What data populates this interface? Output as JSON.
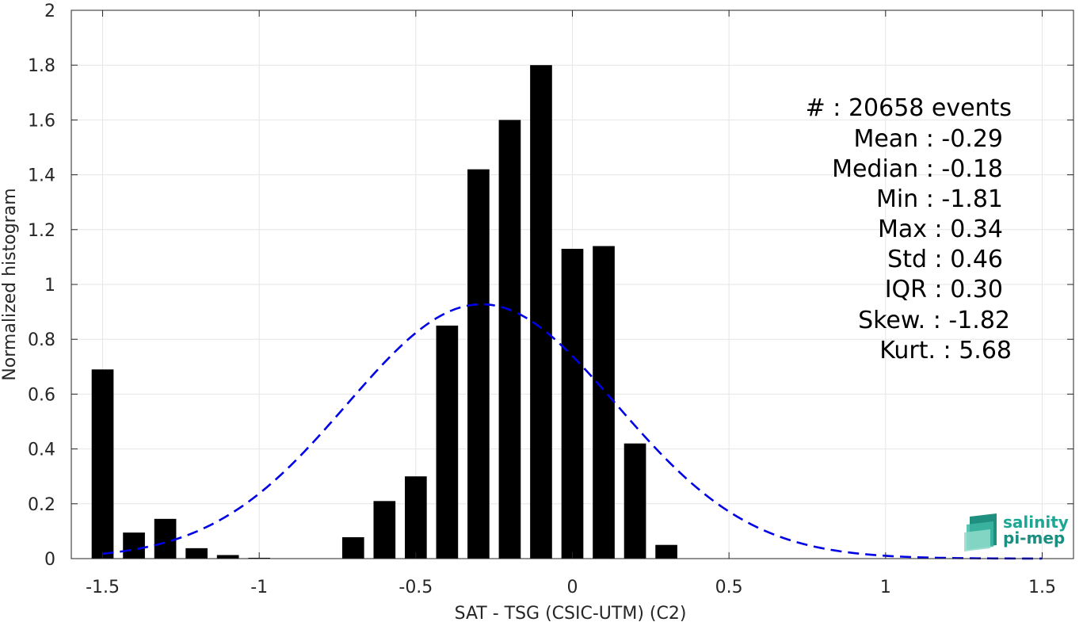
{
  "chart_data": {
    "type": "bar",
    "xlabel": "SAT - TSG (CSIC-UTM) (C2)",
    "ylabel": "Normalized histogram",
    "xlim": [
      -1.6,
      1.6
    ],
    "ylim": [
      0,
      2
    ],
    "x_ticks": [
      "-1.5",
      "-1",
      "-0.5",
      "0",
      "0.5",
      "1",
      "1.5"
    ],
    "x_tick_values": [
      -1.5,
      -1,
      -0.5,
      0,
      0.5,
      1,
      1.5
    ],
    "y_ticks": [
      "0",
      "0.2",
      "0.4",
      "0.6",
      "0.8",
      "1",
      "1.2",
      "1.4",
      "1.6",
      "1.8",
      "2"
    ],
    "y_tick_values": [
      0,
      0.2,
      0.4,
      0.6,
      0.8,
      1,
      1.2,
      1.4,
      1.6,
      1.8,
      2
    ],
    "grid": true,
    "bar_width": 0.07,
    "bar_color": "#000000",
    "bins": [
      {
        "x": -1.5,
        "y": 0.69
      },
      {
        "x": -1.4,
        "y": 0.095
      },
      {
        "x": -1.3,
        "y": 0.145
      },
      {
        "x": -1.2,
        "y": 0.038
      },
      {
        "x": -1.1,
        "y": 0.013
      },
      {
        "x": -1.0,
        "y": 0.003
      },
      {
        "x": -0.9,
        "y": 0.0
      },
      {
        "x": -0.8,
        "y": 0.0
      },
      {
        "x": -0.7,
        "y": 0.078
      },
      {
        "x": -0.6,
        "y": 0.21
      },
      {
        "x": -0.5,
        "y": 0.3
      },
      {
        "x": -0.4,
        "y": 0.85
      },
      {
        "x": -0.3,
        "y": 1.42
      },
      {
        "x": -0.2,
        "y": 1.6
      },
      {
        "x": -0.1,
        "y": 1.8
      },
      {
        "x": 0.0,
        "y": 1.13
      },
      {
        "x": 0.1,
        "y": 1.14
      },
      {
        "x": 0.2,
        "y": 0.42
      },
      {
        "x": 0.3,
        "y": 0.05
      }
    ],
    "fit_curve": {
      "type": "gaussian",
      "mean": -0.29,
      "std": 0.43,
      "x_range": [
        -1.5,
        1.5
      ],
      "color": "#0000e6",
      "style": "dashed"
    }
  },
  "stats": [
    "#  : 20658 events",
    "Mean : -0.29",
    "Median : -0.18",
    "Min : -1.81",
    "Max : 0.34",
    "Std : 0.46",
    "IQR : 0.30",
    "Skew. : -1.82",
    "Kurt. : 5.68"
  ],
  "logo": {
    "line1": "salinity",
    "line2": "pi-mep",
    "color": "#1aa894"
  }
}
